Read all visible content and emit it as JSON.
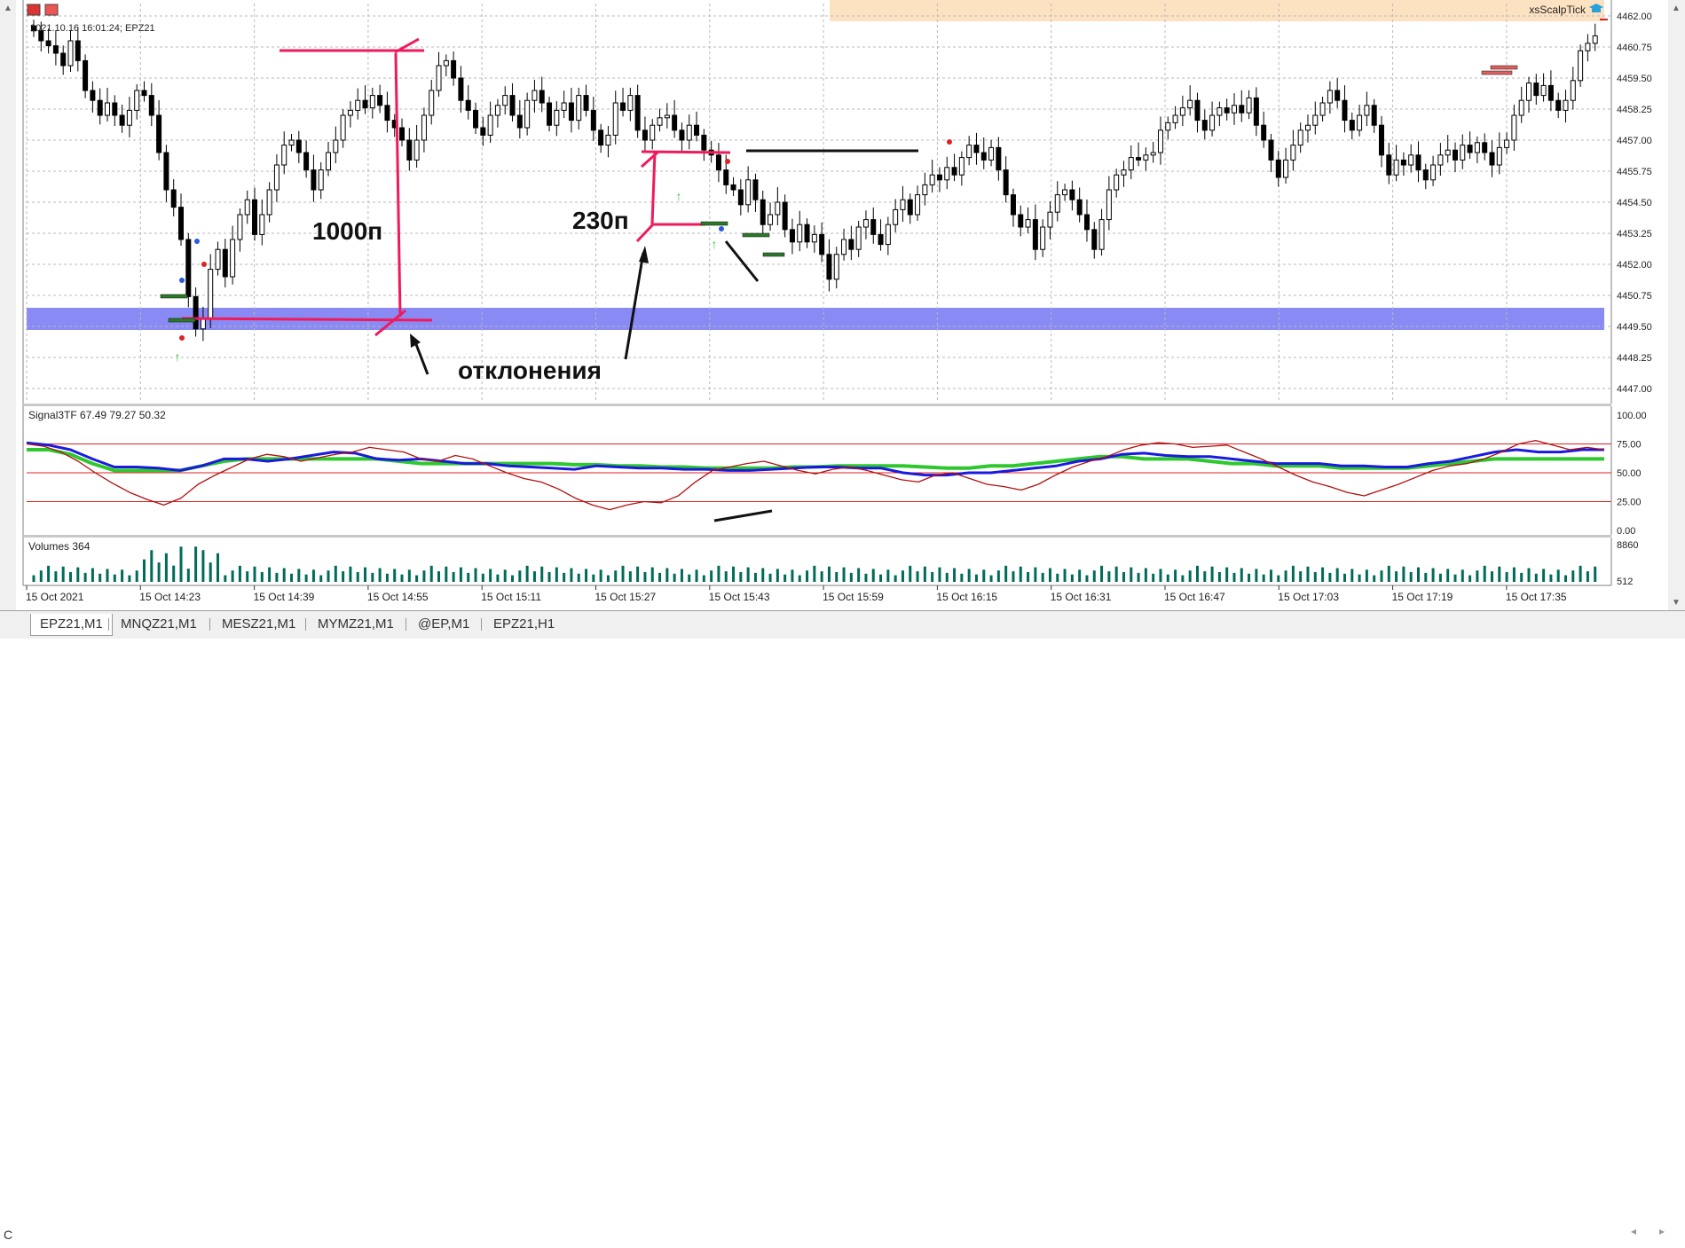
{
  "window": {
    "info_label": "2021.10.16 16:01:24; EPZ21",
    "ea_label": "xsScalpTick"
  },
  "price_axis": {
    "labels": [
      "4462.00",
      "4460.75",
      "4459.50",
      "4458.25",
      "4457.00",
      "4455.75",
      "4454.50",
      "4453.25",
      "4452.00",
      "4450.75",
      "4449.50",
      "4448.25",
      "4447.00"
    ]
  },
  "time_axis": {
    "labels": [
      "15 Oct 2021",
      "15 Oct 14:23",
      "15 Oct 14:39",
      "15 Oct 14:55",
      "15 Oct 15:11",
      "15 Oct 15:27",
      "15 Oct 15:43",
      "15 Oct 15:59",
      "15 Oct 16:15",
      "15 Oct 16:31",
      "15 Oct 16:47",
      "15 Oct 17:03",
      "15 Oct 17:19",
      "15 Oct 17:35"
    ]
  },
  "indicator": {
    "title": "Signal3TF 67.49 79.27 50.32",
    "axis_labels": [
      "100.00",
      "75.00",
      "50.00",
      "25.00",
      "0.00"
    ]
  },
  "volumes": {
    "title": "Volumes 364",
    "axis_labels": [
      "8860",
      "512"
    ]
  },
  "annotations": {
    "label_1000": "1000п",
    "label_230": "230п",
    "label_deviation": "отклонения"
  },
  "tabs": [
    "EPZ21,M1",
    "MNQZ21,M1",
    "MESZ21,M1",
    "MYMZ21,M1",
    "@EP,M1",
    "EPZ21,H1"
  ],
  "colors": {
    "bull": "#ffffff",
    "bear": "#000000",
    "support_zone": "#8a8af5",
    "resistance_zone": "#fde2c2",
    "annotation": "#f01a5a",
    "indicator_red": "#b01010",
    "indicator_blue": "#1a1adf",
    "indicator_green": "#2ec82e",
    "volume": "#006b5a",
    "level_lines": "#e02020"
  },
  "chart_data": [
    {
      "type": "candlestick",
      "title": "EPZ21,M1",
      "ylim": [
        4446.5,
        4462.5
      ],
      "close": [
        4461.4,
        4461.0,
        4460.8,
        4460.5,
        4460.0,
        4461.0,
        4460.2,
        4459.0,
        4458.6,
        4458.0,
        4458.5,
        4458.0,
        4457.6,
        4458.2,
        4459.0,
        4458.8,
        4458.0,
        4456.5,
        4455.0,
        4454.3,
        4453.0,
        4450.7,
        4449.4,
        4449.8,
        4451.8,
        4452.6,
        4451.5,
        4453.0,
        4454.0,
        4454.6,
        4453.2,
        4454.0,
        4455.0,
        4456.0,
        4456.8,
        4457.0,
        4456.5,
        4455.8,
        4455.0,
        4455.8,
        4456.5,
        4457.0,
        4458.0,
        4458.2,
        4458.6,
        4458.3,
        4458.8,
        4458.4,
        4457.8,
        4457.5,
        4457.0,
        4456.2,
        4457.0,
        4458.0,
        4459.0,
        4460.0,
        4460.2,
        4459.5,
        4458.6,
        4458.2,
        4457.5,
        4457.2,
        4458.0,
        4458.4,
        4458.8,
        4458.0,
        4457.5,
        4458.6,
        4459.0,
        4458.5,
        4457.6,
        4458.2,
        4458.5,
        4457.8,
        4458.8,
        4458.2,
        4457.4,
        4456.8,
        4457.2,
        4458.5,
        4458.2,
        4458.8,
        4457.4,
        4457.0,
        4457.6,
        4457.9,
        4458.0,
        4457.4,
        4457.0,
        4457.6,
        4457.2,
        4456.6,
        4456.4,
        4455.8,
        4455.2,
        4455.0,
        4454.4,
        4455.4,
        4454.6,
        4453.6,
        4454.0,
        4454.5,
        4453.4,
        4452.9,
        4453.6,
        4452.9,
        4453.2,
        4452.4,
        4451.4,
        4452.4,
        4453.0,
        4452.6,
        4453.5,
        4453.8,
        4453.2,
        4452.8,
        4453.6,
        4454.2,
        4454.6,
        4454.0,
        4454.8,
        4455.2,
        4455.6,
        4455.4,
        4455.9,
        4455.6,
        4456.3,
        4456.8,
        4456.5,
        4456.2,
        4456.7,
        4455.8,
        4454.8,
        4454.0,
        4453.5,
        4453.8,
        4452.6,
        4453.5,
        4454.1,
        4454.8,
        4455.0,
        4454.6,
        4454.0,
        4453.4,
        4452.6,
        4453.8,
        4455.0,
        4455.6,
        4455.8,
        4456.3,
        4456.2,
        4456.4,
        4456.5,
        4457.4,
        4457.7,
        4458.0,
        4458.3,
        4458.6,
        4457.8,
        4457.4,
        4458.0,
        4458.3,
        4458.1,
        4458.4,
        4458.1,
        4458.7,
        4457.6,
        4457.0,
        4456.2,
        4455.5,
        4456.2,
        4456.8,
        4457.4,
        4457.6,
        4458.0,
        4458.5,
        4459.0,
        4458.6,
        4457.8,
        4457.4,
        4458.0,
        4458.4,
        4457.6,
        4456.4,
        4455.6,
        4456.2,
        4456.0,
        4456.4,
        4455.8,
        4455.4,
        4456.0,
        4456.4,
        4456.6,
        4456.2,
        4456.8,
        4456.5,
        4456.9,
        4456.5,
        4456.0,
        4456.7,
        4457.0,
        4458.0,
        4458.6,
        4459.3,
        4458.8,
        4459.2,
        4458.6,
        4458.2,
        4458.6,
        4459.4,
        4460.6,
        4460.9,
        4461.2
      ]
    },
    {
      "type": "line",
      "title": "Signal3TF",
      "ylim": [
        0,
        100
      ],
      "series": [
        {
          "name": "red",
          "values": [
            75,
            73,
            68,
            60,
            50,
            41,
            33,
            27,
            22,
            28,
            40,
            48,
            55,
            62,
            66,
            64,
            60,
            63,
            66,
            68,
            72,
            70,
            68,
            62,
            60,
            65,
            62,
            56,
            50,
            45,
            42,
            36,
            28,
            22,
            18,
            22,
            25,
            24,
            30,
            42,
            52,
            55,
            58,
            60,
            56,
            52,
            49,
            53,
            55,
            52,
            48,
            44,
            42,
            48,
            50,
            45,
            40,
            38,
            35,
            40,
            48,
            55,
            60,
            64,
            70,
            74,
            76,
            75,
            72,
            73,
            74,
            68,
            62,
            55,
            48,
            42,
            38,
            33,
            30,
            35,
            40,
            46,
            52,
            56,
            58,
            62,
            68,
            75,
            78,
            74,
            70,
            72,
            70
          ]
        },
        {
          "name": "blue",
          "values": [
            76,
            74,
            70,
            62,
            55,
            55,
            54,
            52,
            56,
            62,
            62,
            60,
            62,
            65,
            68,
            67,
            62,
            61,
            62,
            60,
            58,
            58,
            56,
            55,
            54,
            53,
            56,
            55,
            54,
            54,
            53,
            53,
            52,
            52,
            53,
            54,
            55,
            55,
            54,
            54,
            50,
            48,
            48,
            50,
            50,
            52,
            54,
            56,
            60,
            62,
            66,
            67,
            65,
            64,
            64,
            62,
            60,
            58,
            58,
            58,
            56,
            56,
            55,
            55,
            58,
            60,
            64,
            68,
            70,
            68,
            68,
            70,
            70
          ]
        },
        {
          "name": "green",
          "values": [
            70,
            70,
            66,
            58,
            52,
            52,
            52,
            52,
            56,
            60,
            62,
            62,
            62,
            62,
            62,
            62,
            62,
            60,
            58,
            58,
            58,
            58,
            58,
            58,
            58,
            57,
            57,
            56,
            56,
            55,
            55,
            54,
            54,
            54,
            54,
            55,
            55,
            56,
            56,
            56,
            56,
            55,
            54,
            54,
            56,
            56,
            58,
            60,
            62,
            64,
            64,
            62,
            62,
            62,
            60,
            58,
            58,
            56,
            56,
            56,
            54,
            54,
            54,
            54,
            56,
            58,
            60,
            62,
            62,
            62,
            62,
            62,
            62
          ]
        }
      ]
    },
    {
      "type": "bar",
      "title": "Volumes",
      "ylim": [
        0,
        8860
      ]
    }
  ]
}
